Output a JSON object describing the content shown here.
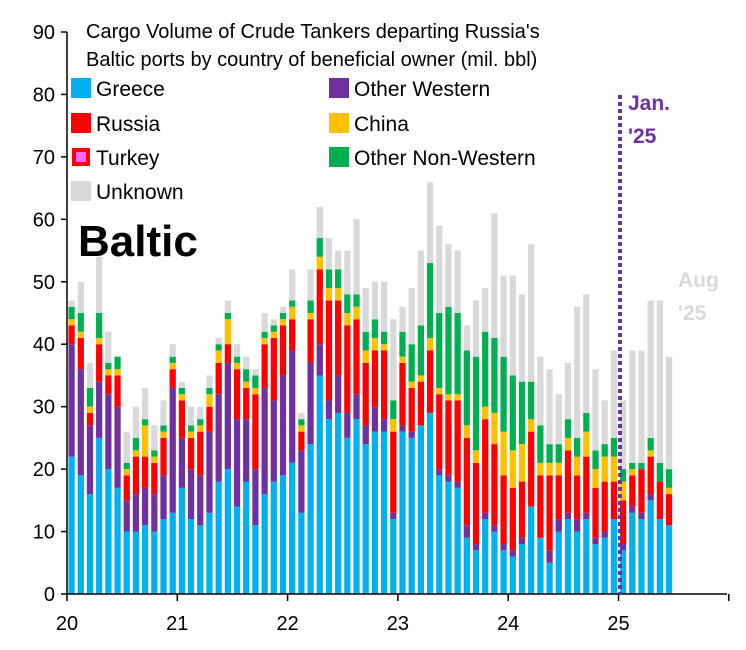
{
  "chart_data": {
    "type": "bar",
    "stacked": true,
    "title_lines": [
      "Cargo Volume of Crude Tankers departing Russia's",
      "Baltic ports by country of beneficial owner (mil. bbl)"
    ],
    "panel_label": "Baltic",
    "xlabel": "",
    "ylabel": "",
    "ylim": [
      0,
      90
    ],
    "y_ticks": [
      0,
      10,
      20,
      30,
      40,
      50,
      60,
      70,
      80,
      90
    ],
    "x_tick_labels": [
      "20",
      "21",
      "22",
      "23",
      "24",
      "25"
    ],
    "x_start_year": 2020,
    "grid": false,
    "legend_position": "top-left",
    "annotations": {
      "jan_line": "Jan.",
      "jan_line_2": "'25",
      "aug_line": "Aug",
      "aug_line_2": "'25"
    },
    "colors": {
      "Greece": "#00b0f0",
      "Other Western": "#7030a0",
      "Russia": "#ff0000",
      "China": "#ffc000",
      "Turkey": "#ff66ff",
      "Other Non-Western": "#00b050",
      "Unknown": "#d9d9d9",
      "jan_line": "#7030a0"
    },
    "legend": [
      "Greece",
      "Other Western",
      "Russia",
      "China",
      "Turkey",
      "Other Non-Western",
      "Unknown"
    ],
    "series": [
      {
        "name": "Greece",
        "values": [
          22,
          19,
          16,
          25,
          20,
          17,
          10,
          10,
          11,
          10,
          12,
          13,
          17,
          12,
          11,
          13,
          18,
          20,
          14,
          18,
          11,
          16,
          18,
          19,
          21,
          13,
          24,
          35,
          28,
          29,
          25,
          28,
          24,
          26,
          26,
          12,
          26,
          25,
          27,
          29,
          19,
          18,
          17,
          9,
          7,
          12,
          10,
          7,
          6,
          8,
          14,
          9,
          5,
          10,
          12,
          10,
          12,
          8,
          9,
          12,
          7,
          13,
          12,
          15,
          12,
          11
        ],
        "comment": "approximate"
      },
      {
        "name": "Other Western",
        "values": [
          18,
          17,
          11,
          9,
          12,
          13,
          5,
          6,
          6,
          6,
          7,
          20,
          8,
          8,
          8,
          13,
          14,
          17,
          14,
          10,
          9,
          17,
          13,
          16,
          18,
          10,
          13,
          5,
          3,
          6,
          4,
          4,
          3,
          4,
          2,
          1,
          1,
          1,
          0,
          0,
          1,
          1,
          1,
          2,
          1,
          1,
          1,
          1,
          1,
          1,
          0,
          0,
          2,
          2,
          1,
          2,
          1,
          1,
          1,
          0,
          1,
          1,
          1,
          1,
          0,
          0
        ]
      },
      {
        "name": "Russia",
        "values": [
          3,
          5,
          2,
          6,
          3,
          5,
          4,
          6,
          5,
          5,
          6,
          3,
          6,
          5,
          7,
          4,
          5,
          3,
          8,
          5,
          12,
          7,
          10,
          8,
          5,
          3,
          7,
          12,
          16,
          12,
          14,
          12,
          10,
          9,
          11,
          13,
          10,
          7,
          7,
          10,
          12,
          12,
          13,
          14,
          13,
          15,
          13,
          11,
          10,
          9,
          12,
          10,
          12,
          7,
          10,
          7,
          9,
          8,
          8,
          6,
          7,
          5,
          7,
          6,
          6,
          5
        ]
      },
      {
        "name": "China",
        "values": [
          1,
          1,
          1,
          1,
          1,
          1,
          1,
          1,
          5,
          1,
          1,
          1,
          1,
          1,
          1,
          2,
          2,
          4,
          1,
          1,
          1,
          1,
          1,
          1,
          2,
          1,
          1,
          2,
          2,
          2,
          2,
          2,
          2,
          2,
          1,
          2,
          1,
          1,
          1,
          2,
          1,
          1,
          1,
          2,
          2,
          2,
          5,
          7,
          6,
          6,
          2,
          2,
          2,
          2,
          2,
          3,
          4,
          3,
          4,
          4,
          3,
          1,
          0,
          1,
          0,
          1
        ]
      },
      {
        "name": "Turkey",
        "values": [
          0,
          0,
          0,
          0,
          0,
          0,
          0,
          0,
          0,
          0,
          0,
          0,
          0,
          0,
          0,
          0,
          0,
          0,
          0,
          0,
          0,
          0,
          0,
          0,
          0,
          0,
          0,
          0,
          0,
          0,
          0,
          0,
          0,
          0,
          0,
          0,
          0,
          0,
          0,
          0,
          0,
          0,
          0,
          0,
          0,
          0,
          0,
          0,
          0,
          0,
          0,
          0,
          0,
          0,
          0,
          0,
          0,
          0,
          0,
          0,
          0,
          0,
          0,
          0,
          0,
          0
        ]
      },
      {
        "name": "Other Non-Western",
        "values": [
          2,
          3,
          3,
          4,
          1,
          2,
          1,
          2,
          1,
          1,
          1,
          1,
          1,
          1,
          1,
          1,
          1,
          1,
          1,
          2,
          2,
          1,
          1,
          1,
          1,
          1,
          2,
          3,
          3,
          3,
          3,
          2,
          3,
          3,
          2,
          3,
          4,
          6,
          8,
          12,
          12,
          14,
          13,
          12,
          15,
          12,
          12,
          12,
          12,
          10,
          6,
          6,
          3,
          3,
          3,
          3,
          3,
          3,
          2,
          3,
          2,
          1,
          1,
          2,
          3,
          3
        ]
      },
      {
        "name": "Unknown",
        "values": [
          1,
          5,
          4,
          9,
          5,
          0,
          5,
          5,
          5,
          4,
          4,
          2,
          1,
          3,
          2,
          2,
          1,
          2,
          2,
          2,
          1,
          3,
          1,
          1,
          5,
          1,
          5,
          5,
          5,
          3,
          7,
          12,
          7,
          6,
          8,
          13,
          4,
          9,
          12,
          13,
          14,
          10,
          10,
          4,
          9,
          7,
          20,
          13,
          16,
          14,
          22,
          11,
          12,
          8,
          9,
          21,
          19,
          13,
          7,
          14,
          11,
          18,
          18,
          22,
          26,
          18
        ]
      }
    ]
  }
}
